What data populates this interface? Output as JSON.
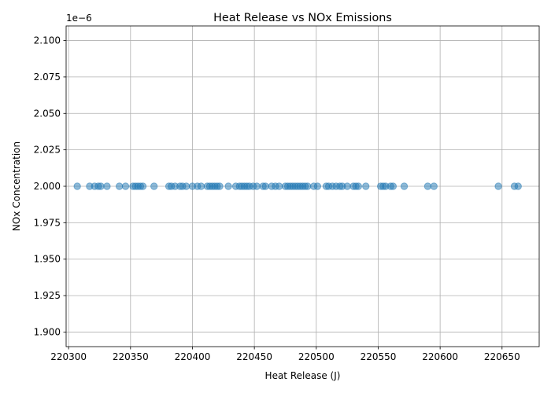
{
  "chart_data": {
    "type": "scatter",
    "title": "Heat Release vs NOx Emissions",
    "xlabel": "Heat Release (J)",
    "ylabel": "NOx Concentration",
    "y_offset_label": "1e−6",
    "xlim": [
      220298,
      220680
    ],
    "ylim": [
      1.89,
      2.11
    ],
    "x_ticks": [
      220300,
      220350,
      220400,
      220450,
      220500,
      220550,
      220600,
      220650
    ],
    "x_tick_labels": [
      "220300",
      "220350",
      "220400",
      "220450",
      "220500",
      "220550",
      "220600",
      "220650"
    ],
    "y_ticks": [
      1.9,
      1.925,
      1.95,
      1.975,
      2.0,
      2.025,
      2.05,
      2.075,
      2.1
    ],
    "y_tick_labels": [
      "1.900",
      "1.925",
      "1.950",
      "1.975",
      "2.000",
      "2.025",
      "2.050",
      "2.075",
      "2.100"
    ],
    "grid": true,
    "point_color": "#1f77b4",
    "point_alpha": 0.5,
    "points": [
      {
        "x": 220307,
        "y": 2.0
      },
      {
        "x": 220317,
        "y": 2.0
      },
      {
        "x": 220321,
        "y": 2.0
      },
      {
        "x": 220324,
        "y": 2.0
      },
      {
        "x": 220326,
        "y": 2.0
      },
      {
        "x": 220331,
        "y": 2.0
      },
      {
        "x": 220341,
        "y": 2.0
      },
      {
        "x": 220346,
        "y": 2.0
      },
      {
        "x": 220352,
        "y": 2.0
      },
      {
        "x": 220354,
        "y": 2.0
      },
      {
        "x": 220356,
        "y": 2.0
      },
      {
        "x": 220358,
        "y": 2.0
      },
      {
        "x": 220360,
        "y": 2.0
      },
      {
        "x": 220369,
        "y": 2.0
      },
      {
        "x": 220381,
        "y": 2.0
      },
      {
        "x": 220383,
        "y": 2.0
      },
      {
        "x": 220386,
        "y": 2.0
      },
      {
        "x": 220390,
        "y": 2.0
      },
      {
        "x": 220392,
        "y": 2.0
      },
      {
        "x": 220395,
        "y": 2.0
      },
      {
        "x": 220400,
        "y": 2.0
      },
      {
        "x": 220404,
        "y": 2.0
      },
      {
        "x": 220407,
        "y": 2.0
      },
      {
        "x": 220412,
        "y": 2.0
      },
      {
        "x": 220414,
        "y": 2.0
      },
      {
        "x": 220416,
        "y": 2.0
      },
      {
        "x": 220418,
        "y": 2.0
      },
      {
        "x": 220420,
        "y": 2.0
      },
      {
        "x": 220422,
        "y": 2.0
      },
      {
        "x": 220429,
        "y": 2.0
      },
      {
        "x": 220435,
        "y": 2.0
      },
      {
        "x": 220438,
        "y": 2.0
      },
      {
        "x": 220440,
        "y": 2.0
      },
      {
        "x": 220442,
        "y": 2.0
      },
      {
        "x": 220444,
        "y": 2.0
      },
      {
        "x": 220446,
        "y": 2.0
      },
      {
        "x": 220449,
        "y": 2.0
      },
      {
        "x": 220452,
        "y": 2.0
      },
      {
        "x": 220457,
        "y": 2.0
      },
      {
        "x": 220459,
        "y": 2.0
      },
      {
        "x": 220464,
        "y": 2.0
      },
      {
        "x": 220467,
        "y": 2.0
      },
      {
        "x": 220470,
        "y": 2.0
      },
      {
        "x": 220475,
        "y": 2.0
      },
      {
        "x": 220477,
        "y": 2.0
      },
      {
        "x": 220479,
        "y": 2.0
      },
      {
        "x": 220481,
        "y": 2.0
      },
      {
        "x": 220483,
        "y": 2.0
      },
      {
        "x": 220485,
        "y": 2.0
      },
      {
        "x": 220487,
        "y": 2.0
      },
      {
        "x": 220489,
        "y": 2.0
      },
      {
        "x": 220491,
        "y": 2.0
      },
      {
        "x": 220493,
        "y": 2.0
      },
      {
        "x": 220498,
        "y": 2.0
      },
      {
        "x": 220501,
        "y": 2.0
      },
      {
        "x": 220508,
        "y": 2.0
      },
      {
        "x": 220510,
        "y": 2.0
      },
      {
        "x": 220513,
        "y": 2.0
      },
      {
        "x": 220516,
        "y": 2.0
      },
      {
        "x": 220519,
        "y": 2.0
      },
      {
        "x": 220521,
        "y": 2.0
      },
      {
        "x": 220525,
        "y": 2.0
      },
      {
        "x": 220530,
        "y": 2.0
      },
      {
        "x": 220532,
        "y": 2.0
      },
      {
        "x": 220534,
        "y": 2.0
      },
      {
        "x": 220540,
        "y": 2.0
      },
      {
        "x": 220552,
        "y": 2.0
      },
      {
        "x": 220554,
        "y": 2.0
      },
      {
        "x": 220556,
        "y": 2.0
      },
      {
        "x": 220560,
        "y": 2.0
      },
      {
        "x": 220562,
        "y": 2.0
      },
      {
        "x": 220571,
        "y": 2.0
      },
      {
        "x": 220590,
        "y": 2.0
      },
      {
        "x": 220595,
        "y": 2.0
      },
      {
        "x": 220647,
        "y": 2.0
      },
      {
        "x": 220660,
        "y": 2.0
      },
      {
        "x": 220663,
        "y": 2.0
      }
    ]
  }
}
